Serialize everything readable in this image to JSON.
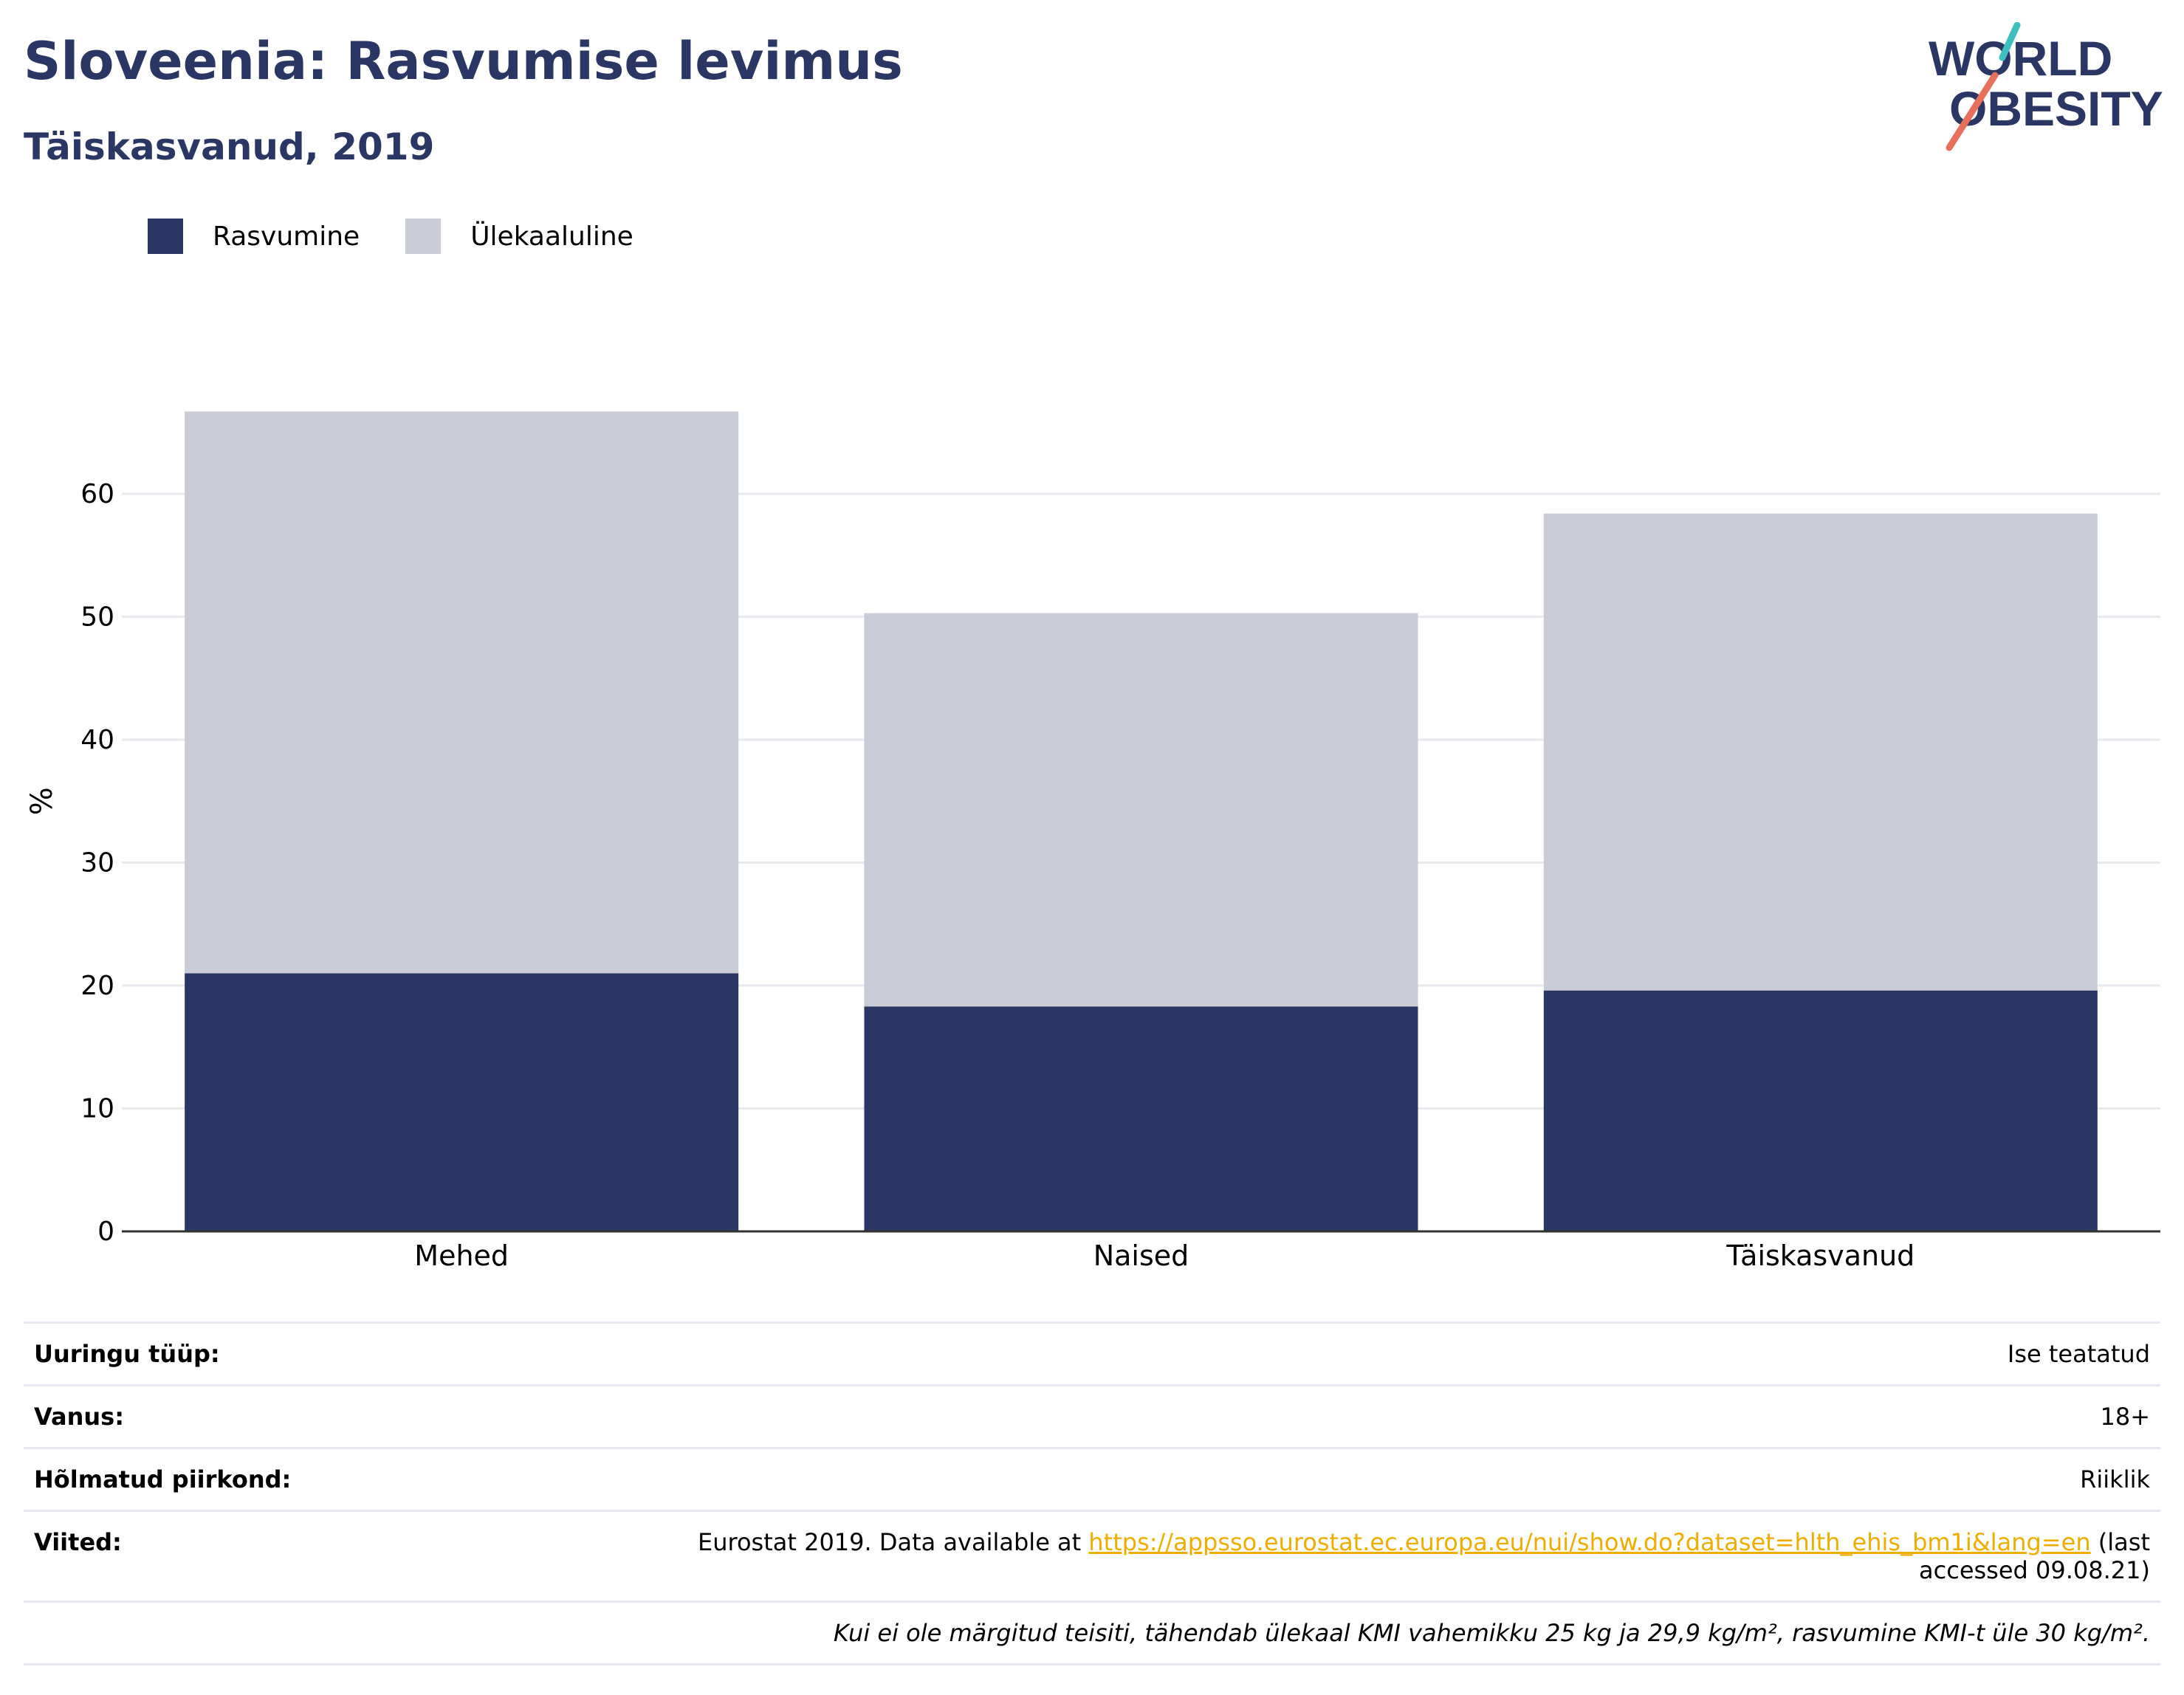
{
  "header": {
    "title": "Sloveenia: Rasvumise levimus",
    "subtitle": "Täiskasvanud, 2019"
  },
  "logo": {
    "line1": "WORLD",
    "line2": "OBESITY"
  },
  "colors": {
    "obesity": "#2a3664",
    "overweight": "#c9cbd7",
    "title": "#2a3664",
    "link": "#f0ad00",
    "logo_teal": "#3dbfbf",
    "logo_red": "#e8705a"
  },
  "legend": {
    "items": [
      {
        "label": "Rasvumine",
        "color": "#2a3664"
      },
      {
        "label": "Ülekaaluline",
        "color": "#c9cbd7"
      }
    ]
  },
  "chart_data": {
    "type": "bar",
    "stacked": true,
    "categories": [
      "Mehed",
      "Naised",
      "Täiskasvanud"
    ],
    "series": [
      {
        "name": "Rasvumine",
        "values": [
          21.0,
          18.3,
          19.6
        ]
      },
      {
        "name": "Ülekaaluline",
        "values": [
          45.7,
          32.0,
          38.8
        ]
      }
    ],
    "ylabel": "%",
    "ylim": [
      0,
      70
    ],
    "yticks": [
      0,
      10,
      20,
      30,
      40,
      50,
      60
    ],
    "grid": true,
    "legend_position": "top-left"
  },
  "info": {
    "survey_label": "Uuringu tüüp:",
    "survey_value": "Ise teatatud",
    "age_label": "Vanus:",
    "age_value": "18+",
    "region_label": "Hõlmatud piirkond:",
    "region_value": "Riiklik",
    "refs_label": "Viited:",
    "refs_prefix": "Eurostat 2019. Data available at ",
    "refs_link": "https://appsso.eurostat.ec.europa.eu/nui/show.do?dataset=hlth_ehis_bm1i&lang=en",
    "refs_suffix": " (last accessed 09.08.21)",
    "footnote": "Kui ei ole märgitud teisiti, tähendab ülekaal KMI vahemikku 25 kg ja 29,9 kg/m², rasvumine KMI-t üle 30 kg/m²."
  }
}
